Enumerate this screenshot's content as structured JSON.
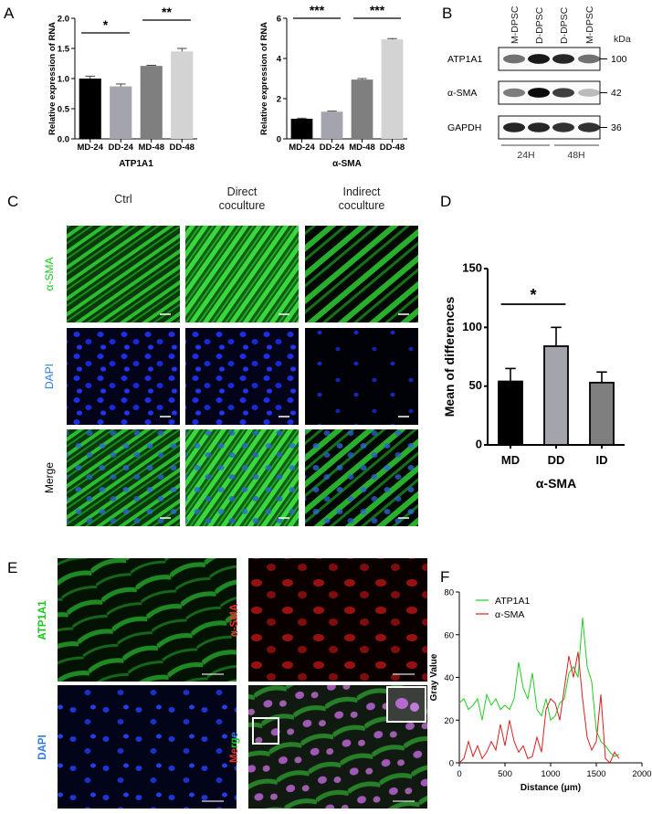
{
  "panels": {
    "A": "A",
    "B": "B",
    "C": "C",
    "D": "D",
    "E": "E",
    "F": "F"
  },
  "colors": {
    "c1": "#000000",
    "c2": "#a4a4ac",
    "c3": "#7f7f7f",
    "c4": "#d3d3d3",
    "green": "#19c81e",
    "red": "#e6322d",
    "dapi": "#2f7ce0"
  },
  "panelA": [
    {
      "type": "bar",
      "ylabel": "Relative expression of RNA",
      "xtitle": "ATP1A1",
      "ylim": [
        0,
        2.0
      ],
      "yticks": [
        "0.0",
        "0.5",
        "1.0",
        "1.5",
        "2.0"
      ],
      "tickvals": [
        0,
        0.5,
        1.0,
        1.5,
        2.0
      ],
      "categories": [
        "MD-24",
        "DD-24",
        "MD-48",
        "DD-48"
      ],
      "values": [
        1.0,
        0.87,
        1.21,
        1.45
      ],
      "errors": [
        0.04,
        0.04,
        0.01,
        0.05
      ],
      "sig": [
        {
          "from": 0,
          "to": 1,
          "label": "*"
        },
        {
          "from": 2,
          "to": 3,
          "label": "**"
        }
      ]
    },
    {
      "type": "bar",
      "ylabel": "Relative expression of RNA",
      "xtitle": "α-SMA",
      "ylim": [
        0,
        6
      ],
      "yticks": [
        "0",
        "2",
        "4",
        "6"
      ],
      "tickvals": [
        0,
        2,
        4,
        6
      ],
      "categories": [
        "MD-24",
        "DD-24",
        "MD-48",
        "DD-48"
      ],
      "values": [
        1.0,
        1.35,
        2.95,
        4.95
      ],
      "errors": [
        0.03,
        0.03,
        0.05,
        0.04
      ],
      "sig": [
        {
          "from": 0,
          "to": 1,
          "label": "***"
        },
        {
          "from": 2,
          "to": 3,
          "label": "***"
        }
      ]
    }
  ],
  "panelB": {
    "lanes": [
      "M-DPSC",
      "D-DPSC",
      "D-DPSC",
      "M-DPSC"
    ],
    "kda_label": "kDa",
    "rows": [
      {
        "name": "ATP1A1",
        "kda": "100"
      },
      {
        "name": "α-SMA",
        "kda": "42"
      },
      {
        "name": "GAPDH",
        "kda": "36"
      }
    ],
    "groups": [
      "24H",
      "48H"
    ]
  },
  "panelC": {
    "cols": [
      "Ctrl",
      "Direct\ncoculture",
      "Indirect\ncoculture"
    ],
    "rows": [
      "α-SMA",
      "DAPI",
      "Merge"
    ]
  },
  "panelD": {
    "type": "bar",
    "ylabel": "Mean of differences",
    "xtitle": "α-SMA",
    "ylim": [
      0,
      150
    ],
    "yticks": [
      "0",
      "50",
      "100",
      "150"
    ],
    "tickvals": [
      0,
      50,
      100,
      150
    ],
    "categories": [
      "MD",
      "DD",
      "ID"
    ],
    "values": [
      54,
      84,
      53
    ],
    "errors": [
      11,
      16,
      9
    ],
    "sig": [
      {
        "from": 0,
        "to": 1,
        "label": "*"
      }
    ]
  },
  "panelE": {
    "labels": [
      "ATP1A1",
      "α-SMA",
      "DAPI",
      "Merge"
    ]
  },
  "chart_data": {
    "type": "line",
    "ylabel": "Gray Value",
    "xlabel": "Distance (μm)",
    "xlim": [
      0,
      2000
    ],
    "ylim": [
      0,
      80
    ],
    "xticks": [
      "0",
      "500",
      "1000",
      "1500",
      "2000"
    ],
    "xtickvals": [
      0,
      500,
      1000,
      1500,
      2000
    ],
    "yticks": [
      "0",
      "20",
      "40",
      "60",
      "80"
    ],
    "ytickvals": [
      0,
      20,
      40,
      60,
      80
    ],
    "legend": "top-left",
    "series": [
      {
        "name": "ATP1A1",
        "color": "#22cc22",
        "x": [
          0,
          50,
          100,
          150,
          200,
          250,
          300,
          350,
          400,
          450,
          500,
          550,
          600,
          650,
          700,
          750,
          800,
          850,
          900,
          950,
          1000,
          1050,
          1100,
          1150,
          1200,
          1250,
          1300,
          1350,
          1400,
          1450,
          1500,
          1550,
          1600,
          1650,
          1700,
          1750
        ],
        "y": [
          28,
          30,
          25,
          27,
          30,
          20,
          32,
          27,
          30,
          25,
          27,
          25,
          30,
          47,
          35,
          30,
          42,
          25,
          22,
          30,
          20,
          22,
          28,
          30,
          42,
          45,
          40,
          68,
          45,
          38,
          15,
          10,
          8,
          5,
          3,
          4
        ]
      },
      {
        "name": "α-SMA",
        "color": "#d92020",
        "x": [
          0,
          50,
          100,
          150,
          200,
          250,
          300,
          350,
          400,
          450,
          500,
          550,
          600,
          650,
          700,
          750,
          800,
          850,
          900,
          950,
          1000,
          1050,
          1100,
          1150,
          1200,
          1250,
          1300,
          1350,
          1400,
          1450,
          1500,
          1550,
          1600,
          1650,
          1700,
          1750
        ],
        "y": [
          0,
          2,
          10,
          3,
          8,
          2,
          5,
          10,
          6,
          18,
          8,
          20,
          10,
          5,
          8,
          2,
          3,
          12,
          5,
          25,
          30,
          28,
          20,
          35,
          50,
          40,
          52,
          30,
          12,
          6,
          10,
          32,
          2,
          0,
          5,
          2
        ]
      }
    ]
  }
}
